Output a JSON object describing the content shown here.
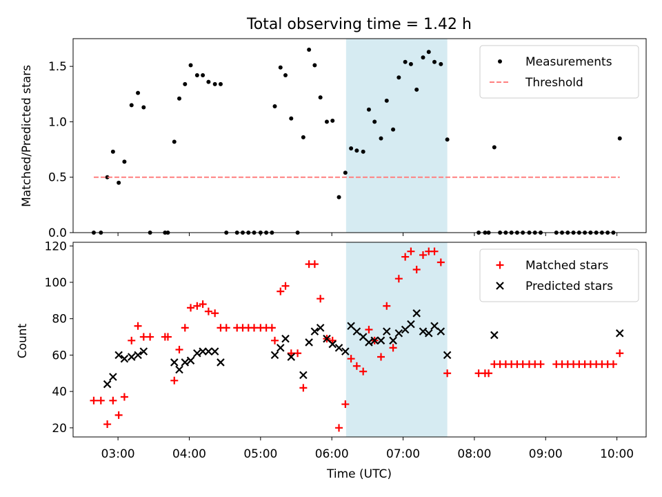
{
  "chart_data": {
    "title": "Total observing time = 1.42 h",
    "xlabel": "Time (UTC)",
    "x_unit": "hours UTC",
    "xlim": [
      2.37,
      10.41
    ],
    "x_ticks": [
      {
        "value": 3.0,
        "label": "03:00"
      },
      {
        "value": 4.0,
        "label": "04:00"
      },
      {
        "value": 5.0,
        "label": "05:00"
      },
      {
        "value": 6.0,
        "label": "06:00"
      },
      {
        "value": 7.0,
        "label": "07:00"
      },
      {
        "value": 8.0,
        "label": "08:00"
      },
      {
        "value": 9.0,
        "label": "09:00"
      },
      {
        "value": 10.0,
        "label": "10:00"
      }
    ],
    "highlight_span": {
      "x0": 6.2,
      "x1": 7.62,
      "color": "#add8e6"
    },
    "panels": [
      {
        "type": "scatter",
        "ylabel": "Matched/Predicted stars",
        "ylim": [
          0,
          1.75
        ],
        "y_ticks": [
          0.0,
          0.5,
          1.0,
          1.5
        ],
        "y_tick_labels": [
          "0.0",
          "0.5",
          "1.0",
          "1.5"
        ],
        "legend_position": "top-right",
        "series": [
          {
            "name": "Measurements",
            "marker": "dot",
            "color": "#000000",
            "points": [
              [
                2.66,
                0
              ],
              [
                2.76,
                0
              ],
              [
                2.85,
                0.5
              ],
              [
                2.93,
                0.73
              ],
              [
                3.01,
                0.45
              ],
              [
                3.09,
                0.64
              ],
              [
                3.19,
                1.15
              ],
              [
                3.28,
                1.26
              ],
              [
                3.36,
                1.13
              ],
              [
                3.45,
                0
              ],
              [
                3.66,
                0
              ],
              [
                3.7,
                0
              ],
              [
                3.79,
                0.82
              ],
              [
                3.86,
                1.21
              ],
              [
                3.94,
                1.34
              ],
              [
                4.02,
                1.51
              ],
              [
                4.11,
                1.42
              ],
              [
                4.19,
                1.42
              ],
              [
                4.27,
                1.36
              ],
              [
                4.36,
                1.34
              ],
              [
                4.44,
                1.34
              ],
              [
                4.52,
                0
              ],
              [
                4.67,
                0
              ],
              [
                4.75,
                0
              ],
              [
                4.83,
                0
              ],
              [
                4.91,
                0
              ],
              [
                5.0,
                0
              ],
              [
                5.08,
                0
              ],
              [
                5.16,
                0
              ],
              [
                5.2,
                1.14
              ],
              [
                5.28,
                1.49
              ],
              [
                5.35,
                1.42
              ],
              [
                5.43,
                1.03
              ],
              [
                5.52,
                0
              ],
              [
                5.6,
                0.86
              ],
              [
                5.68,
                1.65
              ],
              [
                5.76,
                1.51
              ],
              [
                5.84,
                1.22
              ],
              [
                5.93,
                1.0
              ],
              [
                6.01,
                1.01
              ],
              [
                6.1,
                0.32
              ],
              [
                6.19,
                0.54
              ],
              [
                6.27,
                0.76
              ],
              [
                6.35,
                0.74
              ],
              [
                6.44,
                0.73
              ],
              [
                6.52,
                1.11
              ],
              [
                6.6,
                1.0
              ],
              [
                6.69,
                0.85
              ],
              [
                6.77,
                1.19
              ],
              [
                6.86,
                0.93
              ],
              [
                6.94,
                1.4
              ],
              [
                7.03,
                1.54
              ],
              [
                7.11,
                1.52
              ],
              [
                7.19,
                1.29
              ],
              [
                7.28,
                1.58
              ],
              [
                7.36,
                1.63
              ],
              [
                7.44,
                1.54
              ],
              [
                7.53,
                1.52
              ],
              [
                7.62,
                0.84
              ],
              [
                8.06,
                0
              ],
              [
                8.15,
                0
              ],
              [
                8.2,
                0
              ],
              [
                8.28,
                0.77
              ],
              [
                8.36,
                0
              ],
              [
                8.44,
                0
              ],
              [
                8.52,
                0
              ],
              [
                8.6,
                0
              ],
              [
                8.68,
                0
              ],
              [
                8.77,
                0
              ],
              [
                8.85,
                0
              ],
              [
                8.93,
                0
              ],
              [
                9.15,
                0
              ],
              [
                9.23,
                0
              ],
              [
                9.31,
                0
              ],
              [
                9.39,
                0
              ],
              [
                9.47,
                0
              ],
              [
                9.55,
                0
              ],
              [
                9.63,
                0
              ],
              [
                9.71,
                0
              ],
              [
                9.79,
                0
              ],
              [
                9.87,
                0
              ],
              [
                9.95,
                0
              ],
              [
                10.04,
                0.85
              ]
            ]
          },
          {
            "name": "Threshold",
            "marker": "dashed-line",
            "color": "#ff7f7f",
            "points": [
              [
                2.66,
                0.5
              ],
              [
                10.04,
                0.5
              ]
            ]
          }
        ]
      },
      {
        "type": "scatter",
        "ylabel": "Count",
        "ylim": [
          15,
          122
        ],
        "y_ticks": [
          20,
          40,
          60,
          80,
          100,
          120
        ],
        "y_tick_labels": [
          "20",
          "40",
          "60",
          "80",
          "100",
          "120"
        ],
        "legend_position": "top-right",
        "series": [
          {
            "name": "Matched stars",
            "marker": "plus",
            "color": "#ff0000",
            "points": [
              [
                2.66,
                35
              ],
              [
                2.76,
                35
              ],
              [
                2.85,
                22
              ],
              [
                2.93,
                35
              ],
              [
                3.01,
                27
              ],
              [
                3.09,
                37
              ],
              [
                3.19,
                68
              ],
              [
                3.28,
                76
              ],
              [
                3.36,
                70
              ],
              [
                3.45,
                70
              ],
              [
                3.66,
                70
              ],
              [
                3.7,
                70
              ],
              [
                3.79,
                46
              ],
              [
                3.86,
                63
              ],
              [
                3.94,
                75
              ],
              [
                4.02,
                86
              ],
              [
                4.11,
                87
              ],
              [
                4.19,
                88
              ],
              [
                4.27,
                84
              ],
              [
                4.36,
                83
              ],
              [
                4.44,
                75
              ],
              [
                4.52,
                75
              ],
              [
                4.67,
                75
              ],
              [
                4.75,
                75
              ],
              [
                4.83,
                75
              ],
              [
                4.91,
                75
              ],
              [
                5.0,
                75
              ],
              [
                5.08,
                75
              ],
              [
                5.16,
                75
              ],
              [
                5.2,
                68
              ],
              [
                5.28,
                95
              ],
              [
                5.35,
                98
              ],
              [
                5.43,
                61
              ],
              [
                5.52,
                61
              ],
              [
                5.6,
                42
              ],
              [
                5.68,
                110
              ],
              [
                5.76,
                110
              ],
              [
                5.84,
                91
              ],
              [
                5.93,
                69
              ],
              [
                6.01,
                68
              ],
              [
                6.1,
                20
              ],
              [
                6.19,
                33
              ],
              [
                6.27,
                58
              ],
              [
                6.35,
                54
              ],
              [
                6.44,
                51
              ],
              [
                6.52,
                74
              ],
              [
                6.6,
                68
              ],
              [
                6.69,
                59
              ],
              [
                6.77,
                87
              ],
              [
                6.86,
                64
              ],
              [
                6.94,
                102
              ],
              [
                7.03,
                114
              ],
              [
                7.11,
                117
              ],
              [
                7.19,
                107
              ],
              [
                7.28,
                115
              ],
              [
                7.36,
                117
              ],
              [
                7.44,
                117
              ],
              [
                7.53,
                111
              ],
              [
                7.62,
                50
              ],
              [
                8.06,
                50
              ],
              [
                8.15,
                50
              ],
              [
                8.2,
                50
              ],
              [
                8.28,
                55
              ],
              [
                8.36,
                55
              ],
              [
                8.44,
                55
              ],
              [
                8.52,
                55
              ],
              [
                8.6,
                55
              ],
              [
                8.68,
                55
              ],
              [
                8.77,
                55
              ],
              [
                8.85,
                55
              ],
              [
                8.93,
                55
              ],
              [
                9.15,
                55
              ],
              [
                9.23,
                55
              ],
              [
                9.31,
                55
              ],
              [
                9.39,
                55
              ],
              [
                9.47,
                55
              ],
              [
                9.55,
                55
              ],
              [
                9.63,
                55
              ],
              [
                9.71,
                55
              ],
              [
                9.79,
                55
              ],
              [
                9.87,
                55
              ],
              [
                9.95,
                55
              ],
              [
                10.04,
                61
              ]
            ]
          },
          {
            "name": "Predicted stars",
            "marker": "cross",
            "color": "#000000",
            "points": [
              [
                2.85,
                44
              ],
              [
                2.93,
                48
              ],
              [
                3.01,
                60
              ],
              [
                3.09,
                58
              ],
              [
                3.19,
                59
              ],
              [
                3.28,
                60
              ],
              [
                3.36,
                62
              ],
              [
                3.79,
                56
              ],
              [
                3.86,
                52
              ],
              [
                3.94,
                56
              ],
              [
                4.02,
                57
              ],
              [
                4.11,
                61
              ],
              [
                4.19,
                62
              ],
              [
                4.27,
                62
              ],
              [
                4.36,
                62
              ],
              [
                4.44,
                56
              ],
              [
                5.2,
                60
              ],
              [
                5.28,
                64
              ],
              [
                5.35,
                69
              ],
              [
                5.43,
                59
              ],
              [
                5.6,
                49
              ],
              [
                5.68,
                67
              ],
              [
                5.76,
                73
              ],
              [
                5.84,
                75
              ],
              [
                5.93,
                69
              ],
              [
                6.01,
                66
              ],
              [
                6.1,
                64
              ],
              [
                6.19,
                62
              ],
              [
                6.27,
                76
              ],
              [
                6.35,
                73
              ],
              [
                6.44,
                70
              ],
              [
                6.52,
                67
              ],
              [
                6.6,
                68
              ],
              [
                6.69,
                68
              ],
              [
                6.77,
                73
              ],
              [
                6.86,
                68
              ],
              [
                6.94,
                72
              ],
              [
                7.03,
                74
              ],
              [
                7.11,
                77
              ],
              [
                7.19,
                83
              ],
              [
                7.28,
                73
              ],
              [
                7.36,
                72
              ],
              [
                7.44,
                76
              ],
              [
                7.53,
                73
              ],
              [
                7.62,
                60
              ],
              [
                8.28,
                71
              ],
              [
                10.04,
                72
              ]
            ]
          }
        ]
      }
    ]
  }
}
